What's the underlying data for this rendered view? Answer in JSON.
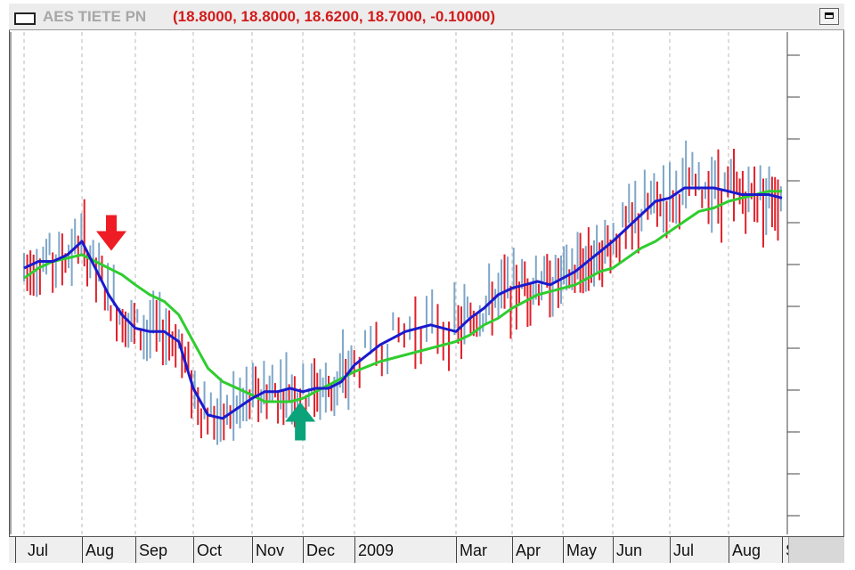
{
  "window": {
    "title": "AES TIETE PN",
    "ohlc_readout": "(18.8000, 18.8000, 18.6200, 18.7000, -0.10000)"
  },
  "colors": {
    "up_bar": "#7ea6c8",
    "down_bar": "#e0202a",
    "fast_ma": "#1a1acd",
    "slow_ma": "#2fcd2f",
    "sell_arrow": "#ee1c24",
    "buy_arrow": "#0aa37a",
    "grid": "#b8b8b8"
  },
  "chart_data": {
    "type": "line",
    "price_bars": "OHLC bars, colored by direction",
    "categories": [
      "Jul",
      "Aug",
      "Sep",
      "Oct",
      "Nov",
      "Dec",
      "2009",
      "Mar",
      "Apr",
      "May",
      "Jun",
      "Jul",
      "Aug",
      "S"
    ],
    "series": [
      {
        "key": "fast_ma",
        "color": "#1a1acd",
        "x": [
          0,
          0.25,
          0.5,
          0.75,
          1.0,
          1.25,
          1.5,
          1.75,
          2.0,
          2.25,
          2.5,
          2.75,
          3.0,
          3.25,
          3.5,
          3.75,
          4.0,
          4.25,
          4.5,
          4.75,
          5.0,
          5.25,
          5.5,
          5.75,
          6.0,
          6.25,
          6.5,
          6.75,
          7.0,
          7.25,
          7.5,
          7.75,
          8.0,
          8.25,
          8.5,
          8.75,
          9.0,
          9.25,
          9.5,
          9.75,
          10.0,
          10.25,
          10.5,
          10.75,
          11.0,
          11.25,
          11.5,
          11.75,
          12.0,
          12.25,
          12.5,
          12.75,
          13.0
        ],
        "values": [
          60,
          62,
          62,
          64,
          68,
          60,
          52,
          46,
          42,
          41,
          41,
          38,
          24,
          16,
          15,
          18,
          21,
          23,
          23,
          24,
          23,
          24,
          24,
          26,
          31,
          37,
          41,
          43,
          41,
          45,
          48,
          52,
          54,
          55,
          56,
          55,
          57,
          59,
          62,
          65,
          68,
          72,
          76,
          80,
          81,
          84,
          84,
          84,
          83,
          82,
          82,
          82,
          81
        ]
      },
      {
        "key": "slow_ma",
        "color": "#2fcd2f",
        "x": [
          0,
          0.25,
          0.5,
          0.75,
          1.0,
          1.25,
          1.5,
          1.75,
          2.0,
          2.25,
          2.5,
          2.75,
          3.0,
          3.25,
          3.5,
          3.75,
          4.0,
          4.25,
          4.5,
          4.75,
          5.0,
          5.25,
          5.5,
          5.75,
          6.0,
          6.25,
          6.5,
          6.75,
          7.0,
          7.25,
          7.5,
          7.75,
          8.0,
          8.25,
          8.5,
          8.75,
          9.0,
          9.25,
          9.5,
          9.75,
          10.0,
          10.25,
          10.5,
          10.75,
          11.0,
          11.25,
          11.5,
          11.75,
          12.0,
          12.25,
          12.5,
          12.75,
          13.0
        ],
        "values": [
          57,
          60,
          62,
          63,
          64,
          62,
          60,
          58,
          55,
          52,
          50,
          46,
          38,
          30,
          26,
          24,
          22,
          20,
          20,
          20,
          21,
          23,
          25,
          27,
          29,
          32,
          34,
          36,
          38,
          40,
          43,
          45,
          48,
          50,
          52,
          53,
          54,
          55,
          57,
          59,
          60,
          63,
          66,
          68,
          71,
          74,
          77,
          78,
          80,
          81,
          82,
          83,
          83
        ]
      }
    ],
    "annotations": [
      {
        "type": "sell_arrow",
        "x": 1.55,
        "y": 70,
        "direction": "down"
      },
      {
        "type": "buy_arrow",
        "x": 4.95,
        "y": 14,
        "direction": "up"
      }
    ],
    "ylim": [
      0,
      100
    ],
    "grid": true
  }
}
